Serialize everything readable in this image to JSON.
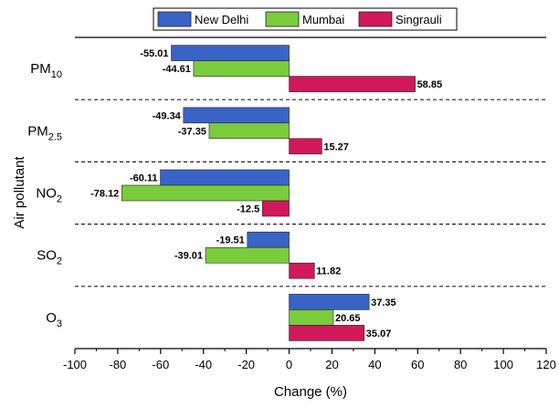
{
  "chart_data": {
    "type": "bar",
    "orientation": "horizontal",
    "xlabel": "Change (%)",
    "ylabel": "Air pollutant",
    "xlim": [
      -100,
      120
    ],
    "xticks": [
      -100,
      -80,
      -60,
      -40,
      -20,
      0,
      20,
      40,
      60,
      80,
      100,
      120
    ],
    "xtick_labels": [
      "-100",
      "-80",
      "-60",
      "-40",
      "-20",
      "0",
      "20",
      "40",
      "60",
      "80",
      "100",
      "120"
    ],
    "categories": [
      {
        "base": "PM",
        "sub": "10"
      },
      {
        "base": "PM",
        "sub": "2.5"
      },
      {
        "base": "NO",
        "sub": "2"
      },
      {
        "base": "SO",
        "sub": "2"
      },
      {
        "base": "O",
        "sub": "3"
      }
    ],
    "series": [
      {
        "name": "New Delhi",
        "color": "#3a63c7",
        "values": [
          -55.01,
          -49.34,
          -60.11,
          -19.51,
          37.35
        ],
        "labels": [
          "-55.01",
          "-49.34",
          "-60.11",
          "-19.51",
          "37.35"
        ]
      },
      {
        "name": "Mumbai",
        "color": "#7acc3c",
        "values": [
          -44.61,
          -37.35,
          -78.12,
          -39.01,
          20.65
        ],
        "labels": [
          "-44.61",
          "-37.35",
          "-78.12",
          "-39.01",
          "20.65"
        ]
      },
      {
        "name": "Singrauli",
        "color": "#d0185a",
        "values": [
          58.85,
          15.27,
          -12.5,
          11.82,
          35.07
        ],
        "labels": [
          "58.85",
          "15.27",
          "-12.5",
          "11.82",
          "35.07"
        ]
      }
    ],
    "legend_position": "top",
    "grid": false,
    "group_separators": "dashed"
  }
}
